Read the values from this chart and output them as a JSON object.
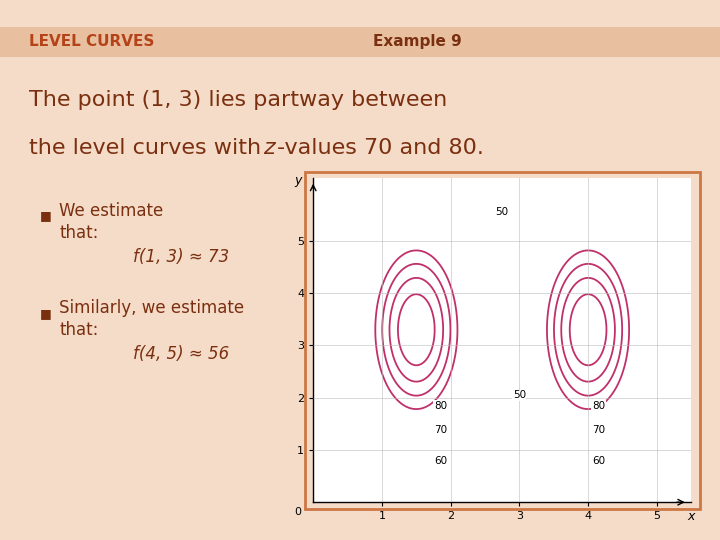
{
  "title_left": "LEVEL CURVES",
  "title_right": "Example 9",
  "main_text_line1": "The point (1, 3) lies partway between",
  "main_text_line2_pre": "the level curves with ",
  "main_text_line2_z": "z",
  "main_text_line2_post": "-values 70 and 80.",
  "bullet1_line1": "We estimate",
  "bullet1_line2": "that:",
  "bullet1_formula": "f(1, 3) ≈ 73",
  "bullet2_line1": "Similarly, we estimate",
  "bullet2_line2": "that:",
  "bullet2_formula": "f(4, 5) ≈ 56",
  "bg_color": "#f5dcc8",
  "header_color": "#e8c0a0",
  "title_color": "#b5431a",
  "text_color": "#7a3010",
  "curve_color": "#c0306a",
  "plot_bg": "#ffffff",
  "plot_border_color": "#cc7744",
  "contour_levels": [
    50,
    60,
    70,
    80
  ]
}
